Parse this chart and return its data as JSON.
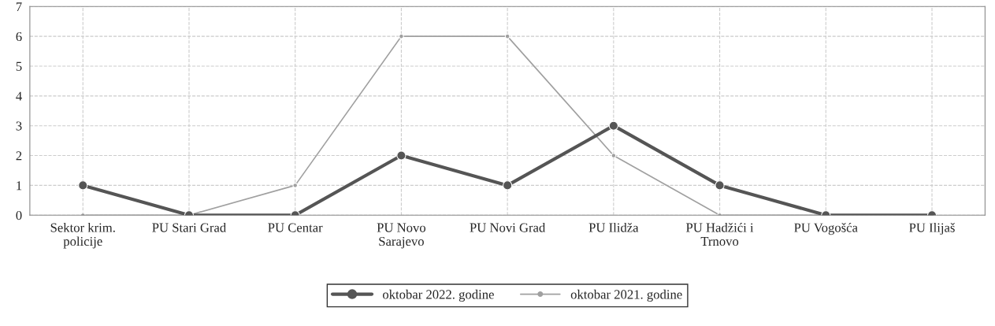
{
  "chart_data": {
    "type": "line",
    "categories": [
      "Sektor krim.\npolicije",
      "PU Stari Grad",
      "PU Centar",
      "PU Novo\nSarajevo",
      "PU Novi Grad",
      "PU Ilidža",
      "PU Hadžići i\nTrnovo",
      "PU Vogošća",
      "PU Ilijaš"
    ],
    "series": [
      {
        "name": "oktobar 2022. godine",
        "color": "#555555",
        "values": [
          1,
          0,
          0,
          2,
          1,
          3,
          1,
          0,
          0
        ]
      },
      {
        "name": "oktobar 2021. godine",
        "color": "#a0a0a0",
        "values": [
          0,
          0,
          1,
          6,
          6,
          2,
          0,
          0,
          0
        ]
      }
    ],
    "ylim": [
      0,
      7
    ],
    "yticks": [
      0,
      1,
      2,
      3,
      4,
      5,
      6,
      7
    ],
    "grid": true,
    "legend": "bottom",
    "marker": "circle",
    "line_style": "solid"
  }
}
